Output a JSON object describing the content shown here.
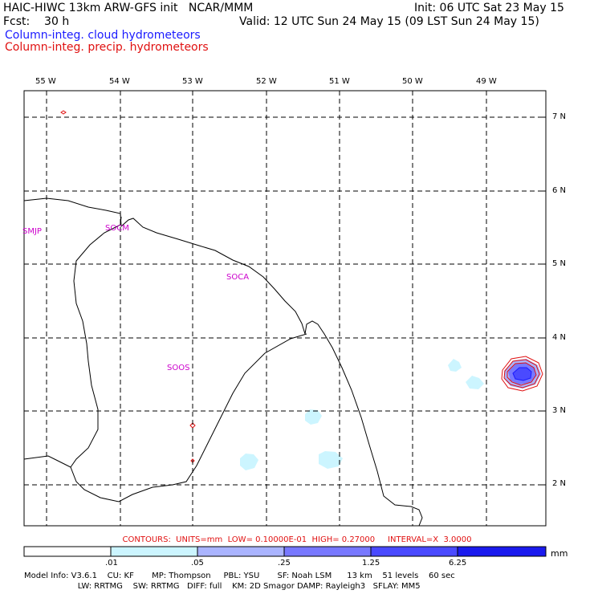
{
  "header": {
    "title_left": "HAIC-HIWC 13km ARW-GFS init   NCAR/MMM",
    "init": "Init: 06 UTC Sat 23 May 15",
    "fcst": "Fcst:    30 h",
    "valid": "Valid: 12 UTC Sun 24 May 15 (09 LST Sun 24 May 15)",
    "field_cloud": "Column-integ. cloud hydrometeors",
    "field_precip": "Column-integ. precip. hydrometeors"
  },
  "map": {
    "lon_labels": [
      "55 W",
      "54 W",
      "53 W",
      "52 W",
      "51 W",
      "50 W",
      "49 W"
    ],
    "lat_labels": [
      "7 N",
      "6 N",
      "5 N",
      "4 N",
      "3 N",
      "2 N"
    ],
    "stations": [
      "SMJP",
      "SOCM",
      "SOCA",
      "SOOS"
    ]
  },
  "colors": {
    "cloud_line": "#1a1aff",
    "precip_line": "#e01010",
    "station": "#cc00cc",
    "fill_levels": [
      "#ffffff",
      "#ccf5ff",
      "#aab4ff",
      "#7878ff",
      "#4a4aff",
      "#1a1aee"
    ]
  },
  "colorbar": {
    "contours_text": "CONTOURS:  UNITS=mm  LOW= 0.10000E-01  HIGH= 0.27000     INTERVAL=X  3.0000",
    "labels": [
      ".01",
      ".05",
      ".25",
      "1.25",
      "6.25"
    ],
    "units": "mm"
  },
  "model_info": {
    "line1": "Model Info: V3.6.1    CU: KF       MP: Thompson     PBL: YSU       SF: Noah LSM      13 km    51 levels    60 sec",
    "line2": "                     LW: RRTMG    SW: RRTMG   DIFF: full    KM: 2D Smagor DAMP: Rayleigh3   SFLAY: MM5"
  }
}
